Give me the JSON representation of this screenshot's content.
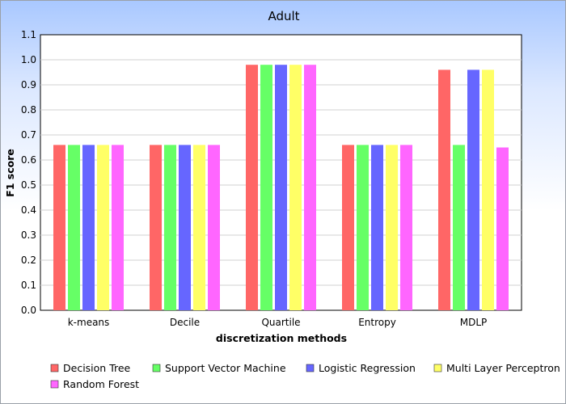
{
  "chart_data": {
    "type": "bar",
    "title": "Adult",
    "xlabel": "discretization methods",
    "ylabel": "F1 score",
    "ylim": [
      0,
      1.1
    ],
    "yticks": [
      "0.0",
      "0.1",
      "0.2",
      "0.3",
      "0.4",
      "0.5",
      "0.6",
      "0.7",
      "0.8",
      "0.9",
      "1.0",
      "1.1"
    ],
    "categories": [
      "k-means",
      "Decile",
      "Quartile",
      "Entropy",
      "MDLP"
    ],
    "series": [
      {
        "name": "Decision Tree",
        "color": "#ff6666",
        "values": [
          0.66,
          0.66,
          0.98,
          0.66,
          0.96
        ]
      },
      {
        "name": "Support Vector Machine",
        "color": "#66ff66",
        "values": [
          0.66,
          0.66,
          0.98,
          0.66,
          0.66
        ]
      },
      {
        "name": "Logistic Regression",
        "color": "#6666ff",
        "values": [
          0.66,
          0.66,
          0.98,
          0.66,
          0.96
        ]
      },
      {
        "name": "Multi Layer Perceptron",
        "color": "#ffff66",
        "values": [
          0.66,
          0.66,
          0.98,
          0.66,
          0.96
        ]
      },
      {
        "name": "Random Forest",
        "color": "#ff66ff",
        "values": [
          0.66,
          0.66,
          0.98,
          0.66,
          0.65
        ]
      }
    ],
    "grid": true,
    "legend_position": "bottom"
  }
}
